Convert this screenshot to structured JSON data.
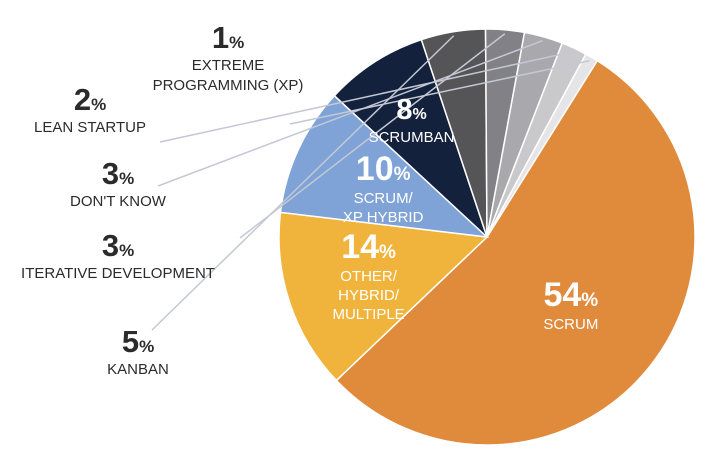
{
  "chart_data": {
    "type": "pie",
    "slices": [
      {
        "number": "54",
        "sign": "%",
        "lines": [
          "SCRUM"
        ],
        "value": 54,
        "color": "#e08a3c",
        "label_color": "#ffffff"
      },
      {
        "number": "14",
        "sign": "%",
        "lines": [
          "OTHER/",
          "HYBRID/",
          "MULTIPLE"
        ],
        "value": 14,
        "color": "#f0b43c",
        "label_color": "#ffffff"
      },
      {
        "number": "10",
        "sign": "%",
        "lines": [
          "SCRUM/",
          "XP HYBRID"
        ],
        "value": 10,
        "color": "#7fa3d6",
        "label_color": "#ffffff"
      },
      {
        "number": "8",
        "sign": "%",
        "lines": [
          "SCRUMBAN"
        ],
        "value": 8,
        "color": "#13213d",
        "label_color": "#ffffff"
      },
      {
        "number": "5",
        "sign": "%",
        "lines": [
          "KANBAN"
        ],
        "value": 5,
        "color": "#555558",
        "label_color": "#2b2b2b"
      },
      {
        "number": "3",
        "sign": "%",
        "lines": [
          "ITERATIVE DEVELOPMENT"
        ],
        "value": 3,
        "color": "#828286",
        "label_color": "#2b2b2b"
      },
      {
        "number": "3",
        "sign": "%",
        "lines": [
          "DON'T KNOW"
        ],
        "value": 3,
        "color": "#a9a9ad",
        "label_color": "#2b2b2b"
      },
      {
        "number": "2",
        "sign": "%",
        "lines": [
          "LEAN STARTUP"
        ],
        "value": 2,
        "color": "#c9c9cc",
        "label_color": "#2b2b2b"
      },
      {
        "number": "1",
        "sign": "%",
        "lines": [
          "EXTREME",
          "PROGRAMMING (XP)"
        ],
        "value": 1,
        "color": "#e5e5e7",
        "label_color": "#2b2b2b"
      }
    ]
  }
}
